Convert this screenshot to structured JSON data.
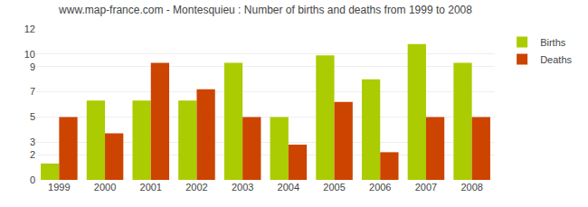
{
  "chart_data": {
    "type": "bar",
    "title": "www.map-france.com - Montesquieu : Number of births and deaths from 1999 to 2008",
    "categories": [
      "1999",
      "2000",
      "2001",
      "2002",
      "2003",
      "2004",
      "2005",
      "2006",
      "2007",
      "2008"
    ],
    "series": [
      {
        "name": "Births",
        "color": "#aacc00",
        "values": [
          1.3,
          6.3,
          6.3,
          6.3,
          9.3,
          5.0,
          9.9,
          8.0,
          10.8,
          9.3
        ]
      },
      {
        "name": "Deaths",
        "color": "#cc4400",
        "values": [
          5.0,
          3.7,
          9.3,
          7.2,
          5.0,
          2.8,
          6.2,
          2.2,
          5.0,
          5.0
        ]
      }
    ],
    "ylim": [
      0,
      12
    ],
    "yticks": [
      0,
      2,
      3,
      5,
      7,
      9,
      10,
      12
    ],
    "grid": true,
    "legend": "upper right"
  }
}
